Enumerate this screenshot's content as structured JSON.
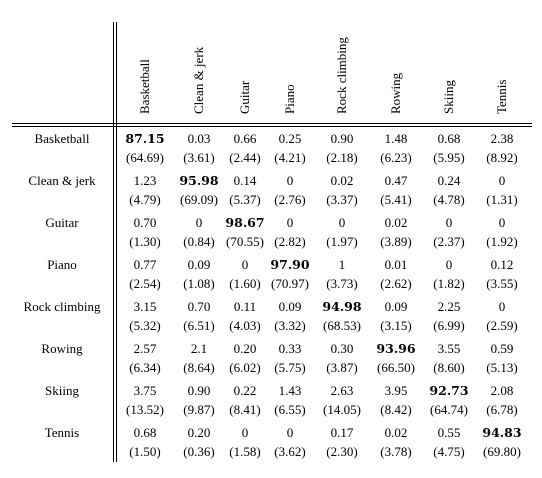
{
  "table": {
    "columns": [
      "Basketball",
      "Clean & jerk",
      "Guitar",
      "Piano",
      "Rock climbing",
      "Rowing",
      "Skiing",
      "Tennis"
    ],
    "rows": [
      {
        "label": "Basketball",
        "values": [
          "87.15",
          "0.03",
          "0.66",
          "0.25",
          "0.90",
          "1.48",
          "0.68",
          "2.38"
        ],
        "sub": [
          "(64.69)",
          "(3.61)",
          "(2.44)",
          "(4.21)",
          "(2.18)",
          "(6.23)",
          "(5.95)",
          "(8.92)"
        ],
        "bold": 0
      },
      {
        "label": "Clean & jerk",
        "values": [
          "1.23",
          "95.98",
          "0.14",
          "0",
          "0.02",
          "0.47",
          "0.24",
          "0"
        ],
        "sub": [
          "(4.79)",
          "(69.09)",
          "(5.37)",
          "(2.76)",
          "(3.37)",
          "(5.41)",
          "(4.78)",
          "(1.31)"
        ],
        "bold": 1
      },
      {
        "label": "Guitar",
        "values": [
          "0.70",
          "0",
          "98.67",
          "0",
          "0",
          "0.02",
          "0",
          "0"
        ],
        "sub": [
          "(1.30)",
          "(0.84)",
          "(70.55)",
          "(2.82)",
          "(1.97)",
          "(3.89)",
          "(2.37)",
          "(1.92)"
        ],
        "bold": 2
      },
      {
        "label": "Piano",
        "values": [
          "0.77",
          "0.09",
          "0",
          "97.90",
          "1",
          "0.01",
          "0",
          "0.12"
        ],
        "sub": [
          "(2.54)",
          "(1.08)",
          "(1.60)",
          "(70.97)",
          "(3.73)",
          "(2.62)",
          "(1.82)",
          "(3.55)"
        ],
        "bold": 3
      },
      {
        "label": "Rock climbing",
        "values": [
          "3.15",
          "0.70",
          "0.11",
          "0.09",
          "94.98",
          "0.09",
          "2.25",
          "0"
        ],
        "sub": [
          "(5.32)",
          "(6.51)",
          "(4.03)",
          "(3.32)",
          "(68.53)",
          "(3.15)",
          "(6.99)",
          "(2.59)"
        ],
        "bold": 4
      },
      {
        "label": "Rowing",
        "values": [
          "2.57",
          "2.1",
          "0.20",
          "0.33",
          "0.30",
          "93.96",
          "3.55",
          "0.59"
        ],
        "sub": [
          "(6.34)",
          "(8.64)",
          "(6.02)",
          "(5.75)",
          "(3.87)",
          "(66.50)",
          "(8.60)",
          "(5.13)"
        ],
        "bold": 5
      },
      {
        "label": "Skiing",
        "values": [
          "3.75",
          "0.90",
          "0.22",
          "1.43",
          "2.63",
          "3.95",
          "92.73",
          "2.08"
        ],
        "sub": [
          "(13.52)",
          "(9.87)",
          "(8.41)",
          "(6.55)",
          "(14.05)",
          "(8.42)",
          "(64.74)",
          "(6.78)"
        ],
        "bold": 6
      },
      {
        "label": "Tennis",
        "values": [
          "0.68",
          "0.20",
          "0",
          "0",
          "0.17",
          "0.02",
          "0.55",
          "94.83"
        ],
        "sub": [
          "(1.50)",
          "(0.36)",
          "(1.58)",
          "(3.62)",
          "(2.30)",
          "(3.78)",
          "(4.75)",
          "(69.80)"
        ],
        "bold": 7
      }
    ]
  }
}
